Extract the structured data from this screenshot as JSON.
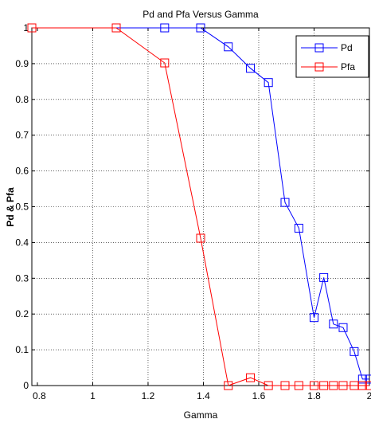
{
  "chart_data": {
    "type": "line",
    "title": "Pd and Pfa Versus Gamma",
    "xlabel": "Gamma",
    "ylabel": "Pd & Pfa",
    "xlim": [
      0.78,
      2.0
    ],
    "ylim": [
      0,
      1
    ],
    "x_ticks": [
      "0.8",
      "1",
      "1.2",
      "1.4",
      "1.6",
      "1.8",
      "2"
    ],
    "y_ticks": [
      "0",
      "0.1",
      "0.2",
      "0.3",
      "0.4",
      "0.5",
      "0.6",
      "0.7",
      "0.8",
      "0.9",
      "1"
    ],
    "grid": true,
    "legend_position": "top-right",
    "marker": "square",
    "series": [
      {
        "name": "Pd",
        "color": "#0000ff",
        "x": [
          0.78,
          1.085,
          1.26,
          1.39,
          1.49,
          1.57,
          1.635,
          1.695,
          1.745,
          1.8,
          1.835,
          1.87,
          1.905,
          1.945,
          1.975,
          2.0
        ],
        "y": [
          1.0,
          1.0,
          1.0,
          1.0,
          0.947,
          0.887,
          0.847,
          0.512,
          0.44,
          0.19,
          0.302,
          0.172,
          0.162,
          0.095,
          0.018,
          0.018
        ]
      },
      {
        "name": "Pfa",
        "color": "#ff0000",
        "x": [
          0.78,
          1.085,
          1.26,
          1.39,
          1.49,
          1.57,
          1.635,
          1.695,
          1.745,
          1.8,
          1.835,
          1.87,
          1.905,
          1.945,
          1.975,
          2.0
        ],
        "y": [
          1.0,
          1.0,
          0.902,
          0.412,
          0.0,
          0.022,
          0.0,
          0.0,
          0.0,
          0.0,
          0.0,
          0.0,
          0.0,
          0.0,
          0.0,
          0.0
        ]
      }
    ]
  }
}
